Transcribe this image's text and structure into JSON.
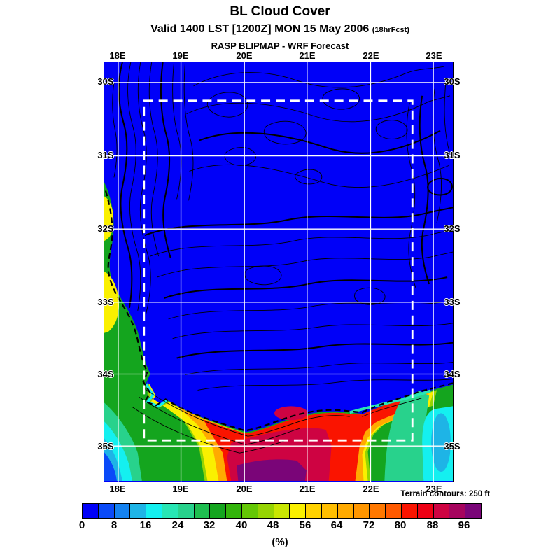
{
  "header": {
    "title": "BL Cloud Cover",
    "subtitle": "Valid 1400 LST [1200Z] MON 15 May 2006",
    "subtitle_small": "(18hrFcst)",
    "source": "RASP BLIPMAP - WRF Forecast"
  },
  "map": {
    "top_lon_labels": [
      "18E",
      "19E",
      "20E",
      "21E",
      "22E",
      "23E"
    ],
    "bottom_lon_labels": [
      "18E",
      "19E",
      "20E",
      "21E",
      "22E",
      "23E"
    ],
    "left_lat_labels": [
      "30S",
      "31S",
      "32S",
      "33S",
      "34S",
      "35S"
    ],
    "right_lat_labels": [
      "30S",
      "31S",
      "32S",
      "33S",
      "34S",
      "35S"
    ],
    "annotation": "Terrain contours: 250 ft"
  },
  "colorbar": {
    "unit_label": "(%)",
    "tick_labels": [
      "0",
      "8",
      "16",
      "24",
      "32",
      "40",
      "48",
      "56",
      "64",
      "72",
      "80",
      "88",
      "96"
    ],
    "colors": [
      "#0000f8",
      "#0a4af8",
      "#1482f0",
      "#1eb4e6",
      "#14f0f0",
      "#28e6b4",
      "#28d28c",
      "#1ebe50",
      "#14a51e",
      "#32b40a",
      "#64c805",
      "#96d403",
      "#c8e602",
      "#faf000",
      "#ffd200",
      "#ffbe00",
      "#ffaa00",
      "#ff9600",
      "#ff7800",
      "#ff5a00",
      "#fa1400",
      "#ee0014",
      "#ce0342",
      "#a6045e",
      "#7a0578"
    ]
  },
  "chart_data": {
    "type": "heatmap",
    "title": "BL Cloud Cover",
    "subtitle": "Valid 1400 LST [1200Z] MON 15 May 2006 (18hrFcst)",
    "source": "RASP BLIPMAP - WRF Forecast",
    "variable": "Boundary-layer cloud cover",
    "unit": "%",
    "x_axis": {
      "label": "Longitude",
      "ticks": [
        "18E",
        "19E",
        "20E",
        "21E",
        "22E",
        "23E"
      ],
      "range_deg_east": [
        17.8,
        23.3
      ],
      "grid": true
    },
    "y_axis": {
      "label": "Latitude",
      "ticks": [
        "30S",
        "31S",
        "32S",
        "33S",
        "34S",
        "35S"
      ],
      "range_deg_south": [
        29.7,
        35.6
      ],
      "grid": true
    },
    "colorbar": {
      "position": "bottom",
      "ticks_pct": [
        0,
        8,
        16,
        24,
        32,
        40,
        48,
        56,
        64,
        72,
        80,
        88,
        96
      ],
      "cell_step_pct": 4,
      "n_cells": 25
    },
    "annotation": "Terrain contours: 250 ft",
    "overlays": [
      "terrain contour lines (black)",
      "coastline (thick dashed black)",
      "lat/lon grid (white)",
      "model inner domain box (white dashed, approx 18.4E-22.7E / 30.5S-34.9S)"
    ],
    "regions": [
      {
        "area": "interior land, most of map (18E-23E / 30S-34.5S)",
        "cloud_pct": "0-4",
        "color": "blue"
      },
      {
        "area": "ocean band along south coast (34.5S-35.6S)",
        "cloud_pct": "40-100",
        "color": "green-yellow-orange-red"
      },
      {
        "area": "maximum core ~19.8E-20.8E south of coast near bottom edge",
        "cloud_pct": "96-100",
        "color": "purple"
      },
      {
        "area": "dark red lobe ~19.9E-21.1E, 35.1S-35.6S",
        "cloud_pct": "84-96",
        "color": "crimson"
      },
      {
        "area": "west coast strip near 18E, 30.8S-33.5S",
        "cloud_pct": "30-56",
        "color": "green with yellow cores"
      },
      {
        "area": "southwest corner near 17.9E/35.5S",
        "cloud_pct": "4-20",
        "color": "blue-cyan bands"
      },
      {
        "area": "southeast corner near 23E/35S",
        "cloud_pct": "8-28",
        "color": "cyan-teal"
      }
    ]
  }
}
